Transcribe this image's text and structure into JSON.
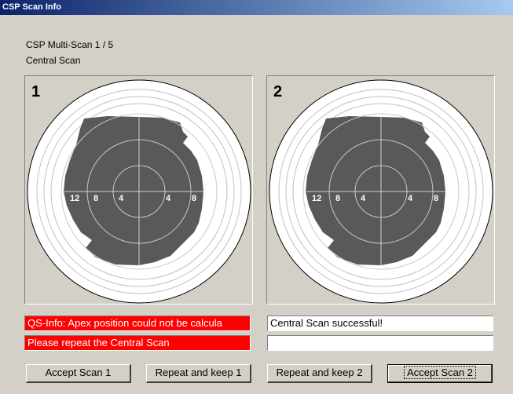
{
  "window": {
    "title": "CSP Scan Info"
  },
  "header": {
    "line1": "CSP Multi-Scan 1 / 5",
    "line2": "Central Scan"
  },
  "panels": [
    {
      "number": "1",
      "axis_labels": [
        "12",
        "8",
        "4",
        "4",
        "8"
      ]
    },
    {
      "number": "2",
      "axis_labels": [
        "12",
        "8",
        "4",
        "4",
        "8"
      ]
    }
  ],
  "messages": {
    "left": [
      "QS-Info: Apex position could not be calcula",
      "Please repeat the Central Scan"
    ],
    "right": [
      "Central Scan successful!"
    ]
  },
  "buttons": [
    "Accept Scan 1",
    "Repeat and keep 1",
    "Repeat and keep 2",
    "Accept Scan 2"
  ]
}
